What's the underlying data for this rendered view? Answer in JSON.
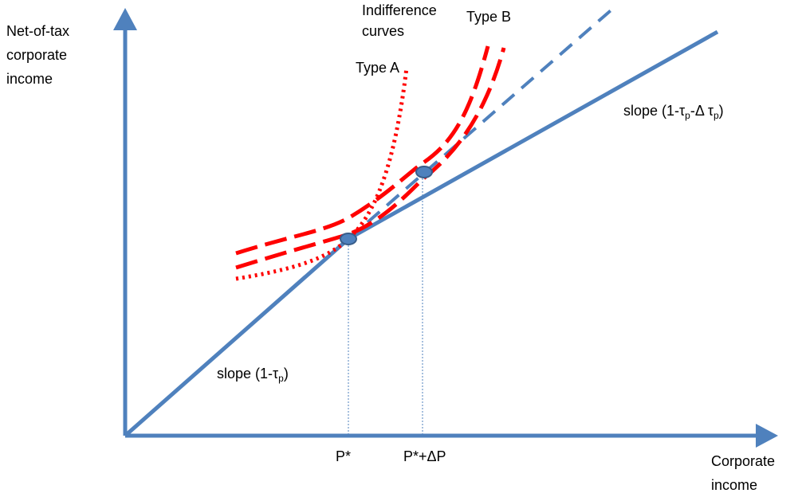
{
  "labels": {
    "y_axis": [
      "Net-of-tax",
      "corporate",
      "income"
    ],
    "x_axis": [
      "Corporate",
      "income"
    ],
    "indifference": [
      "Indifference",
      "curves"
    ],
    "type_a": "Type A",
    "type_b": "Type B",
    "slope_low": {
      "prefix": "slope (1-τ",
      "sub": "p",
      "suffix": ")"
    },
    "slope_high": {
      "prefix": "slope (1-τ",
      "sub1": "p",
      "mid": "-Δ τ",
      "sub2": "p",
      "suffix": ")"
    },
    "p_star": "P*",
    "p_star_dp": "P*+ΔP"
  },
  "colors": {
    "axis": "#4f81bd",
    "budget_line": "#4f81bd",
    "indifference": "#ff0000",
    "guide": "#4f81bd",
    "point_fill": "#4f81bd",
    "point_stroke": "#385d8a"
  }
}
